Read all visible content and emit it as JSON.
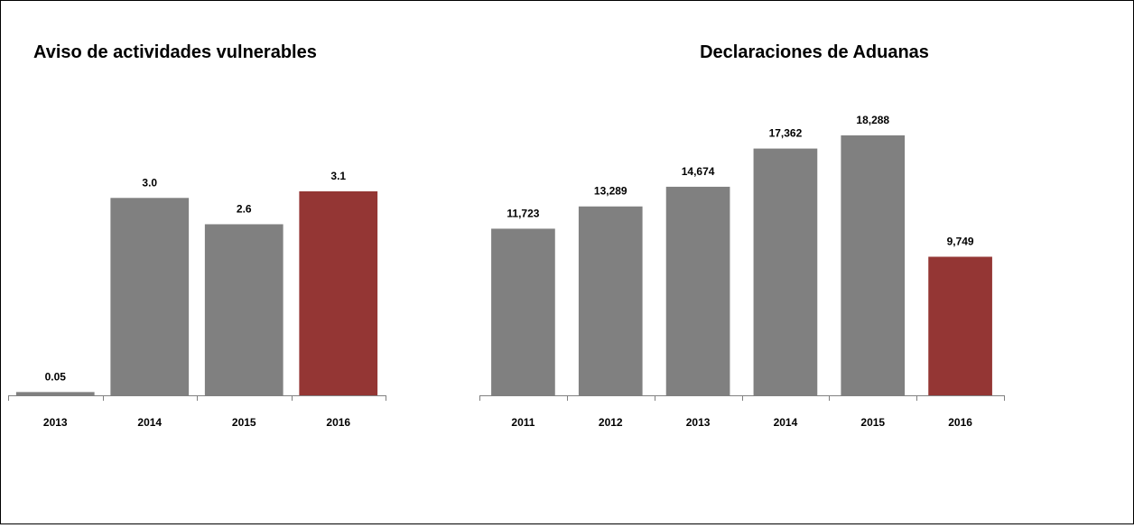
{
  "chart_data": [
    {
      "type": "bar",
      "title": "Aviso de actividades vulnerables",
      "categories": [
        "2013",
        "2014",
        "2015",
        "2016"
      ],
      "values": [
        0.05,
        3.0,
        2.6,
        3.1
      ],
      "data_labels": [
        "0.05",
        "3.0",
        "2.6",
        "3.1"
      ],
      "colors": [
        "#808080",
        "#808080",
        "#808080",
        "#943634"
      ],
      "ylim": [
        0,
        3.1
      ],
      "grid": false,
      "legend": "none"
    },
    {
      "type": "bar",
      "title": "Declaraciones de Aduanas",
      "categories": [
        "2011",
        "2012",
        "2013",
        "2014",
        "2015",
        "2016"
      ],
      "values": [
        11723,
        13289,
        14674,
        17362,
        18288,
        9749
      ],
      "data_labels": [
        "11,723",
        "13,289",
        "14,674",
        "17,362",
        "18,288",
        "9,749"
      ],
      "colors": [
        "#808080",
        "#808080",
        "#808080",
        "#808080",
        "#808080",
        "#943634"
      ],
      "ylim": [
        0,
        18288
      ],
      "grid": false,
      "legend": "none"
    }
  ]
}
